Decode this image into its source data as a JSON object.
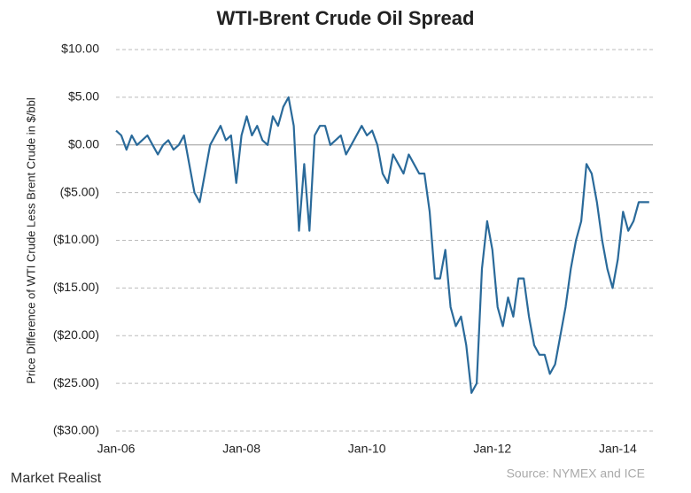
{
  "chart_data": {
    "type": "line",
    "title": "WTI-Brent Crude Oil Spread",
    "y_label": "Price Difference of WTI Crude Less Brent Crude in $/bbl",
    "source": "Source: NYMEX and ICE",
    "brand": "Market Realist",
    "color": "#2a6a9a",
    "grid": true,
    "x": [
      "Jan-06",
      "Feb-06",
      "Mar-06",
      "Apr-06",
      "May-06",
      "Jun-06",
      "Jul-06",
      "Aug-06",
      "Sep-06",
      "Oct-06",
      "Nov-06",
      "Dec-06",
      "Jan-07",
      "Feb-07",
      "Mar-07",
      "Apr-07",
      "May-07",
      "Jun-07",
      "Jul-07",
      "Aug-07",
      "Sep-07",
      "Oct-07",
      "Nov-07",
      "Dec-07",
      "Jan-08",
      "Feb-08",
      "Mar-08",
      "Apr-08",
      "May-08",
      "Jun-08",
      "Jul-08",
      "Aug-08",
      "Sep-08",
      "Oct-08",
      "Nov-08",
      "Dec-08",
      "Jan-09",
      "Feb-09",
      "Mar-09",
      "Apr-09",
      "May-09",
      "Jun-09",
      "Jul-09",
      "Aug-09",
      "Sep-09",
      "Oct-09",
      "Nov-09",
      "Dec-09",
      "Jan-10",
      "Feb-10",
      "Mar-10",
      "Apr-10",
      "May-10",
      "Jun-10",
      "Jul-10",
      "Aug-10",
      "Sep-10",
      "Oct-10",
      "Nov-10",
      "Dec-10",
      "Jan-11",
      "Feb-11",
      "Mar-11",
      "Apr-11",
      "May-11",
      "Jun-11",
      "Jul-11",
      "Aug-11",
      "Sep-11",
      "Oct-11",
      "Nov-11",
      "Dec-11",
      "Jan-12",
      "Feb-12",
      "Mar-12",
      "Apr-12",
      "May-12",
      "Jun-12",
      "Jul-12",
      "Aug-12",
      "Sep-12",
      "Oct-12",
      "Nov-12",
      "Dec-12",
      "Jan-13",
      "Feb-13",
      "Mar-13",
      "Apr-13",
      "May-13",
      "Jun-13",
      "Jul-13",
      "Aug-13",
      "Sep-13",
      "Oct-13",
      "Nov-13",
      "Dec-13",
      "Jan-14",
      "Feb-14",
      "Mar-14",
      "Apr-14",
      "May-14",
      "Jun-14",
      "Jul-14"
    ],
    "values": [
      1.5,
      1,
      -0.5,
      1,
      0,
      0.5,
      1,
      0,
      -1,
      0,
      0.5,
      -0.5,
      0,
      1,
      -2,
      -5,
      -6,
      -3,
      0,
      1,
      2,
      0.5,
      1,
      -4,
      1,
      3,
      1,
      2,
      0.5,
      0,
      3,
      2,
      4,
      5,
      2,
      -9,
      -2,
      -9,
      1,
      2,
      2,
      0,
      0.5,
      1,
      -1,
      0,
      1,
      2,
      1,
      1.5,
      0,
      -3,
      -4,
      -1,
      -2,
      -3,
      -1,
      -2,
      -3,
      -3,
      -7,
      -14,
      -14,
      -11,
      -17,
      -19,
      -18,
      -21,
      -26,
      -25,
      -13,
      -8,
      -11,
      -17,
      -19,
      -16,
      -18,
      -14,
      -14,
      -18,
      -21,
      -22,
      -22,
      -24,
      -23,
      -20,
      -17,
      -13,
      -10,
      -8,
      -2,
      -3,
      -6,
      -10,
      -13,
      -15,
      -12,
      -7,
      -9,
      -8,
      -6,
      -6,
      -6
    ],
    "xticks": [
      "Jan-06",
      "Jan-08",
      "Jan-10",
      "Jan-12",
      "Jan-14"
    ],
    "ylim": [
      -30,
      10
    ],
    "yticks": [
      {
        "value": -30,
        "label": "($30.00)"
      },
      {
        "value": -25,
        "label": "($25.00)"
      },
      {
        "value": -20,
        "label": "($20.00)"
      },
      {
        "value": -15,
        "label": "($15.00)"
      },
      {
        "value": -10,
        "label": "($10.00)"
      },
      {
        "value": -5,
        "label": "($5.00)"
      },
      {
        "value": 0,
        "label": "$0.00"
      },
      {
        "value": 5,
        "label": "$5.00"
      },
      {
        "value": 10,
        "label": "$10.00"
      }
    ]
  }
}
